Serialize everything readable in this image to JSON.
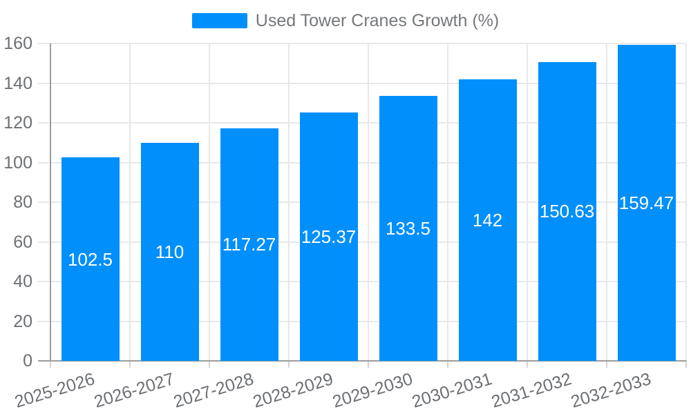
{
  "legend": {
    "label": "Used Tower Cranes Growth (%)"
  },
  "chart_data": {
    "type": "bar",
    "title": "Used Tower Cranes Growth (%)",
    "categories": [
      "2025-2026",
      "2026-2027",
      "2027-2028",
      "2028-2029",
      "2029-2030",
      "2030-2031",
      "2031-2032",
      "2032-2033"
    ],
    "values": [
      102.5,
      110,
      117.27,
      125.37,
      133.5,
      142,
      150.63,
      159.47
    ],
    "xlabel": "",
    "ylabel": "",
    "ylim": [
      0,
      160
    ],
    "ytick_step": 20,
    "grid": true,
    "legend_position": "top",
    "value_labels": "inside-center",
    "colors": {
      "bar": "#008FFB",
      "value_label": "#ffffff",
      "axis_label": "#6c6f73",
      "legend_label": "#75787b",
      "gridline": "#e8e8e8",
      "tick": "#d4d4d4",
      "axis_line": "#9c9c9c",
      "background": "#ffffff"
    }
  }
}
